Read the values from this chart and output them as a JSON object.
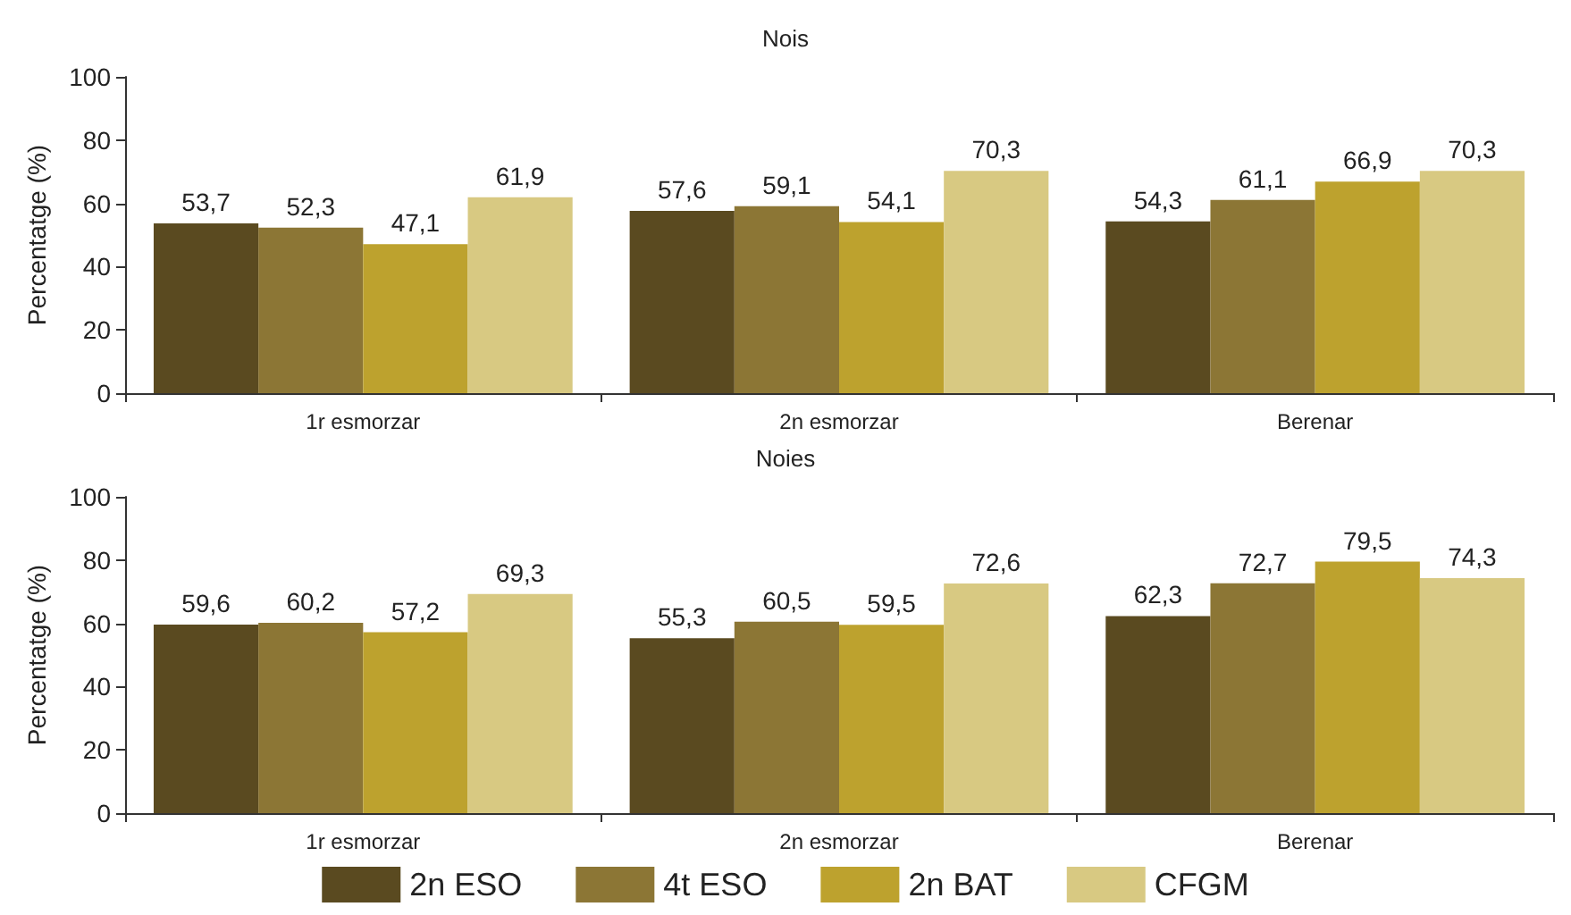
{
  "chart_data": [
    {
      "type": "bar",
      "title": "Nois",
      "ylabel": "Percentatge (%)",
      "categories": [
        "1r esmorzar",
        "2n esmorzar",
        "Berenar"
      ],
      "ylim": [
        0,
        100
      ],
      "yticks": [
        0,
        20,
        40,
        60,
        80,
        100
      ],
      "grid": false,
      "legend": false,
      "series": [
        {
          "color": "#5a4a20",
          "values": [
            53.7,
            57.6,
            54.3
          ],
          "value_labels": [
            "53,7",
            "57,6",
            "54,3"
          ]
        },
        {
          "color": "#8c7635",
          "values": [
            52.3,
            59.1,
            61.1
          ],
          "value_labels": [
            "52,3",
            "59,1",
            "61,1"
          ]
        },
        {
          "color": "#bda22e",
          "values": [
            47.1,
            54.1,
            66.9
          ],
          "value_labels": [
            "47,1",
            "54,1",
            "66,9"
          ]
        },
        {
          "color": "#d8c982",
          "values": [
            61.9,
            70.3,
            70.3
          ],
          "value_labels": [
            "61,9",
            "70,3",
            "70,3"
          ]
        }
      ]
    },
    {
      "type": "bar",
      "title": "Noies",
      "ylabel": "Percentatge (%)",
      "categories": [
        "1r esmorzar",
        "2n esmorzar",
        "Berenar"
      ],
      "ylim": [
        0,
        100
      ],
      "yticks": [
        0,
        20,
        40,
        60,
        80,
        100
      ],
      "grid": false,
      "legend": "bottom",
      "series": [
        {
          "name": "2n ESO",
          "color": "#5a4a20",
          "values": [
            59.6,
            55.3,
            62.3
          ],
          "value_labels": [
            "59,6",
            "55,3",
            "62,3"
          ]
        },
        {
          "name": "4t ESO",
          "color": "#8c7635",
          "values": [
            60.2,
            60.5,
            72.7
          ],
          "value_labels": [
            "60,2",
            "60,5",
            "72,7"
          ]
        },
        {
          "name": "2n BAT",
          "color": "#bda22e",
          "values": [
            57.2,
            59.5,
            79.5
          ],
          "value_labels": [
            "57,2",
            "59,5",
            "79,5"
          ]
        },
        {
          "name": "CFGM",
          "color": "#d8c982",
          "values": [
            69.3,
            72.6,
            74.3
          ],
          "value_labels": [
            "69,3",
            "72,6",
            "74,3"
          ]
        }
      ]
    }
  ]
}
